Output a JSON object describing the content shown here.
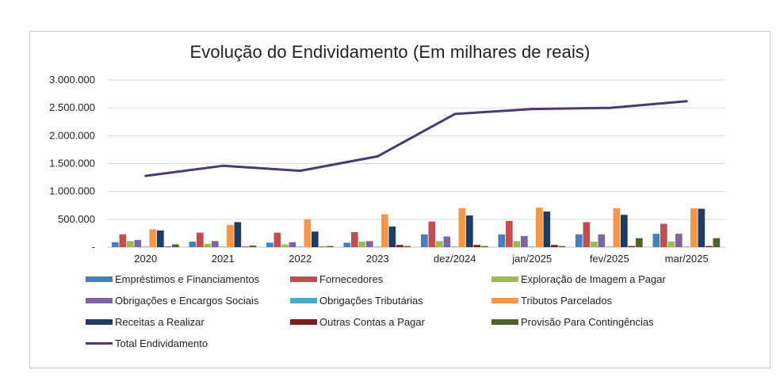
{
  "chart_data": {
    "type": "bar",
    "title": "Evolução do Endividamento (Em milhares de reais)",
    "categories": [
      "2020",
      "2021",
      "2022",
      "2023",
      "dez/2024",
      "jan/2025",
      "fev/2025",
      "mar/2025"
    ],
    "ylim": [
      0,
      3000000
    ],
    "yticks": [
      0,
      500000,
      1000000,
      1500000,
      2000000,
      2500000,
      3000000
    ],
    "ytick_labels": [
      "-",
      "500.000",
      "1.000.000",
      "1.500.000",
      "2.000.000",
      "2.500.000",
      "3.000.000"
    ],
    "grid": true,
    "legend_position": "bottom",
    "series": [
      {
        "name": "Empréstimos e Financiamentos",
        "kind": "bar",
        "color": "#4a7ebb",
        "values": [
          90000,
          100000,
          80000,
          80000,
          230000,
          230000,
          230000,
          240000
        ]
      },
      {
        "name": "Fornecedores",
        "kind": "bar",
        "color": "#c0504d",
        "values": [
          230000,
          260000,
          260000,
          270000,
          460000,
          470000,
          450000,
          420000
        ]
      },
      {
        "name": "Exploração de Imagem a Pagar",
        "kind": "bar",
        "color": "#9bbb59",
        "values": [
          110000,
          60000,
          50000,
          100000,
          110000,
          110000,
          100000,
          100000
        ]
      },
      {
        "name": "Obrigações e Encargos Sociais",
        "kind": "bar",
        "color": "#8064a2",
        "values": [
          130000,
          110000,
          90000,
          110000,
          190000,
          200000,
          230000,
          240000
        ]
      },
      {
        "name": "Obrigações Tributárias",
        "kind": "bar",
        "color": "#4bacc6",
        "values": [
          10000,
          10000,
          10000,
          10000,
          10000,
          10000,
          10000,
          10000
        ]
      },
      {
        "name": "Tributos Parcelados",
        "kind": "bar",
        "color": "#f79646",
        "values": [
          320000,
          400000,
          500000,
          590000,
          700000,
          710000,
          700000,
          700000
        ]
      },
      {
        "name": "Receitas a Realizar",
        "kind": "bar",
        "color": "#1f3c64",
        "values": [
          300000,
          450000,
          280000,
          370000,
          570000,
          640000,
          580000,
          690000
        ]
      },
      {
        "name": "Outras Contas a Pagar",
        "kind": "bar",
        "color": "#7f1e1a",
        "values": [
          10000,
          10000,
          10000,
          40000,
          40000,
          40000,
          20000,
          20000
        ]
      },
      {
        "name": "Provisão Para Contingências",
        "kind": "bar",
        "color": "#4f6228",
        "values": [
          50000,
          30000,
          20000,
          20000,
          20000,
          20000,
          160000,
          160000
        ]
      },
      {
        "name": "Total Endividamento",
        "kind": "line",
        "color": "#4c3a73",
        "values": [
          1280000,
          1460000,
          1370000,
          1630000,
          2390000,
          2480000,
          2500000,
          2620000
        ]
      }
    ]
  }
}
